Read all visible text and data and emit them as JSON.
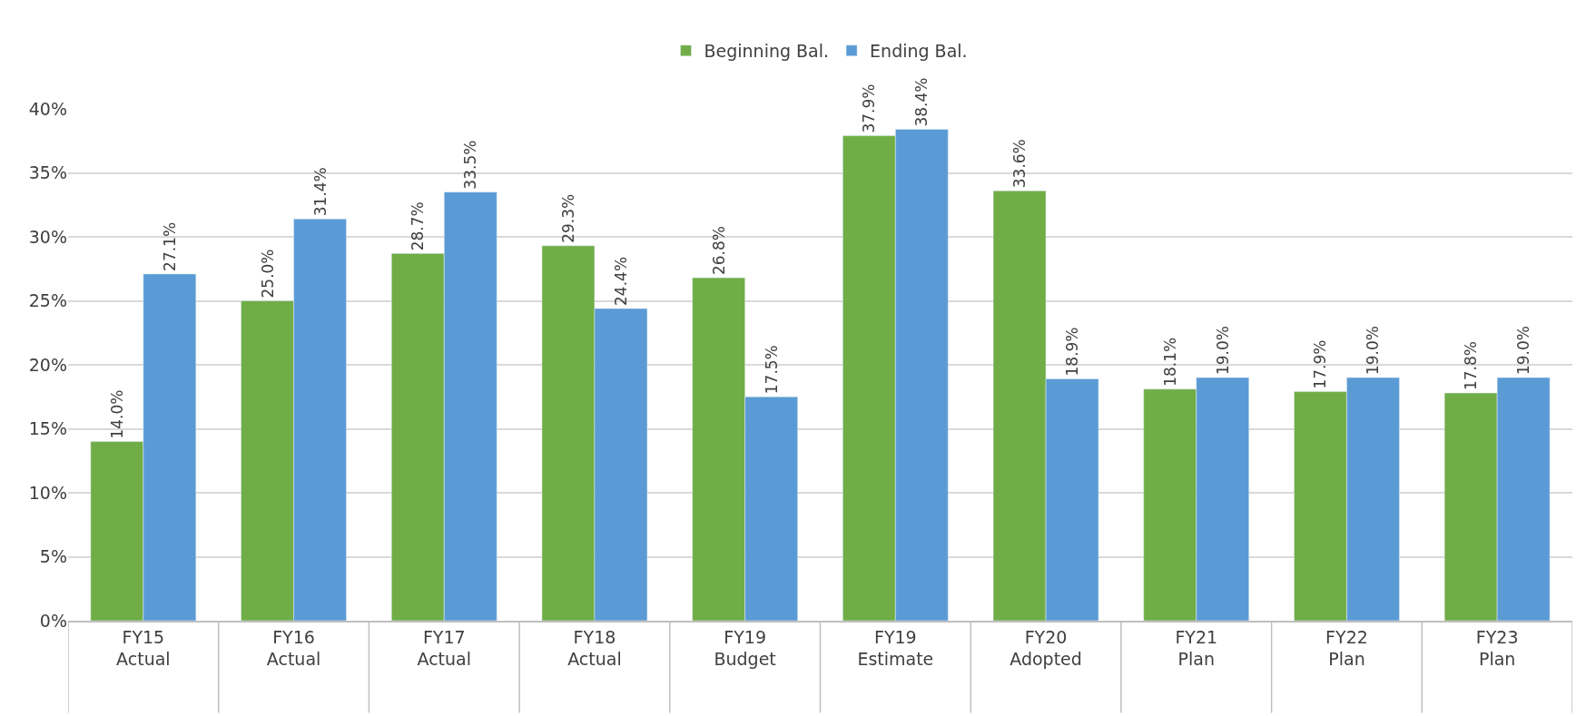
{
  "chart_data": {
    "type": "bar",
    "categories": [
      "FY15\nActual",
      "FY16\nActual",
      "FY17\nActual",
      "FY18\nActual",
      "FY19\nBudget",
      "FY19\nEstimate",
      "FY20\nAdopted",
      "FY21\nPlan",
      "FY22\nPlan",
      "FY23\nPlan"
    ],
    "series": [
      {
        "name": "Beginning Bal.",
        "color": "#70ad47",
        "values": [
          14.0,
          25.0,
          28.7,
          29.3,
          26.8,
          37.9,
          33.6,
          18.1,
          17.9,
          17.8
        ],
        "value_labels": [
          "14.0%",
          "25.0%",
          "28.7%",
          "29.3%",
          "26.8%",
          "37.9%",
          "33.6%",
          "18.1%",
          "17.9%",
          "17.8%"
        ]
      },
      {
        "name": "Ending Bal.",
        "color": "#5b9bd5",
        "values": [
          27.1,
          31.4,
          33.5,
          24.4,
          17.5,
          38.4,
          18.9,
          19.0,
          19.0,
          19.0
        ],
        "value_labels": [
          "27.1%",
          "31.4%",
          "33.5%",
          "24.4%",
          "17.5%",
          "38.4%",
          "18.9%",
          "19.0%",
          "19.0%",
          "19.0%"
        ]
      }
    ],
    "ylim": [
      0,
      40
    ],
    "yticks": [
      {
        "value": 0,
        "label": "0%"
      },
      {
        "value": 5,
        "label": "5%"
      },
      {
        "value": 10,
        "label": "10%"
      },
      {
        "value": 15,
        "label": "15%"
      },
      {
        "value": 20,
        "label": "20%"
      },
      {
        "value": 25,
        "label": "25%"
      },
      {
        "value": 30,
        "label": "30%"
      },
      {
        "value": 35,
        "label": "35%"
      },
      {
        "value": 40,
        "label": "40%"
      }
    ],
    "grid": "y",
    "legend": "top"
  }
}
